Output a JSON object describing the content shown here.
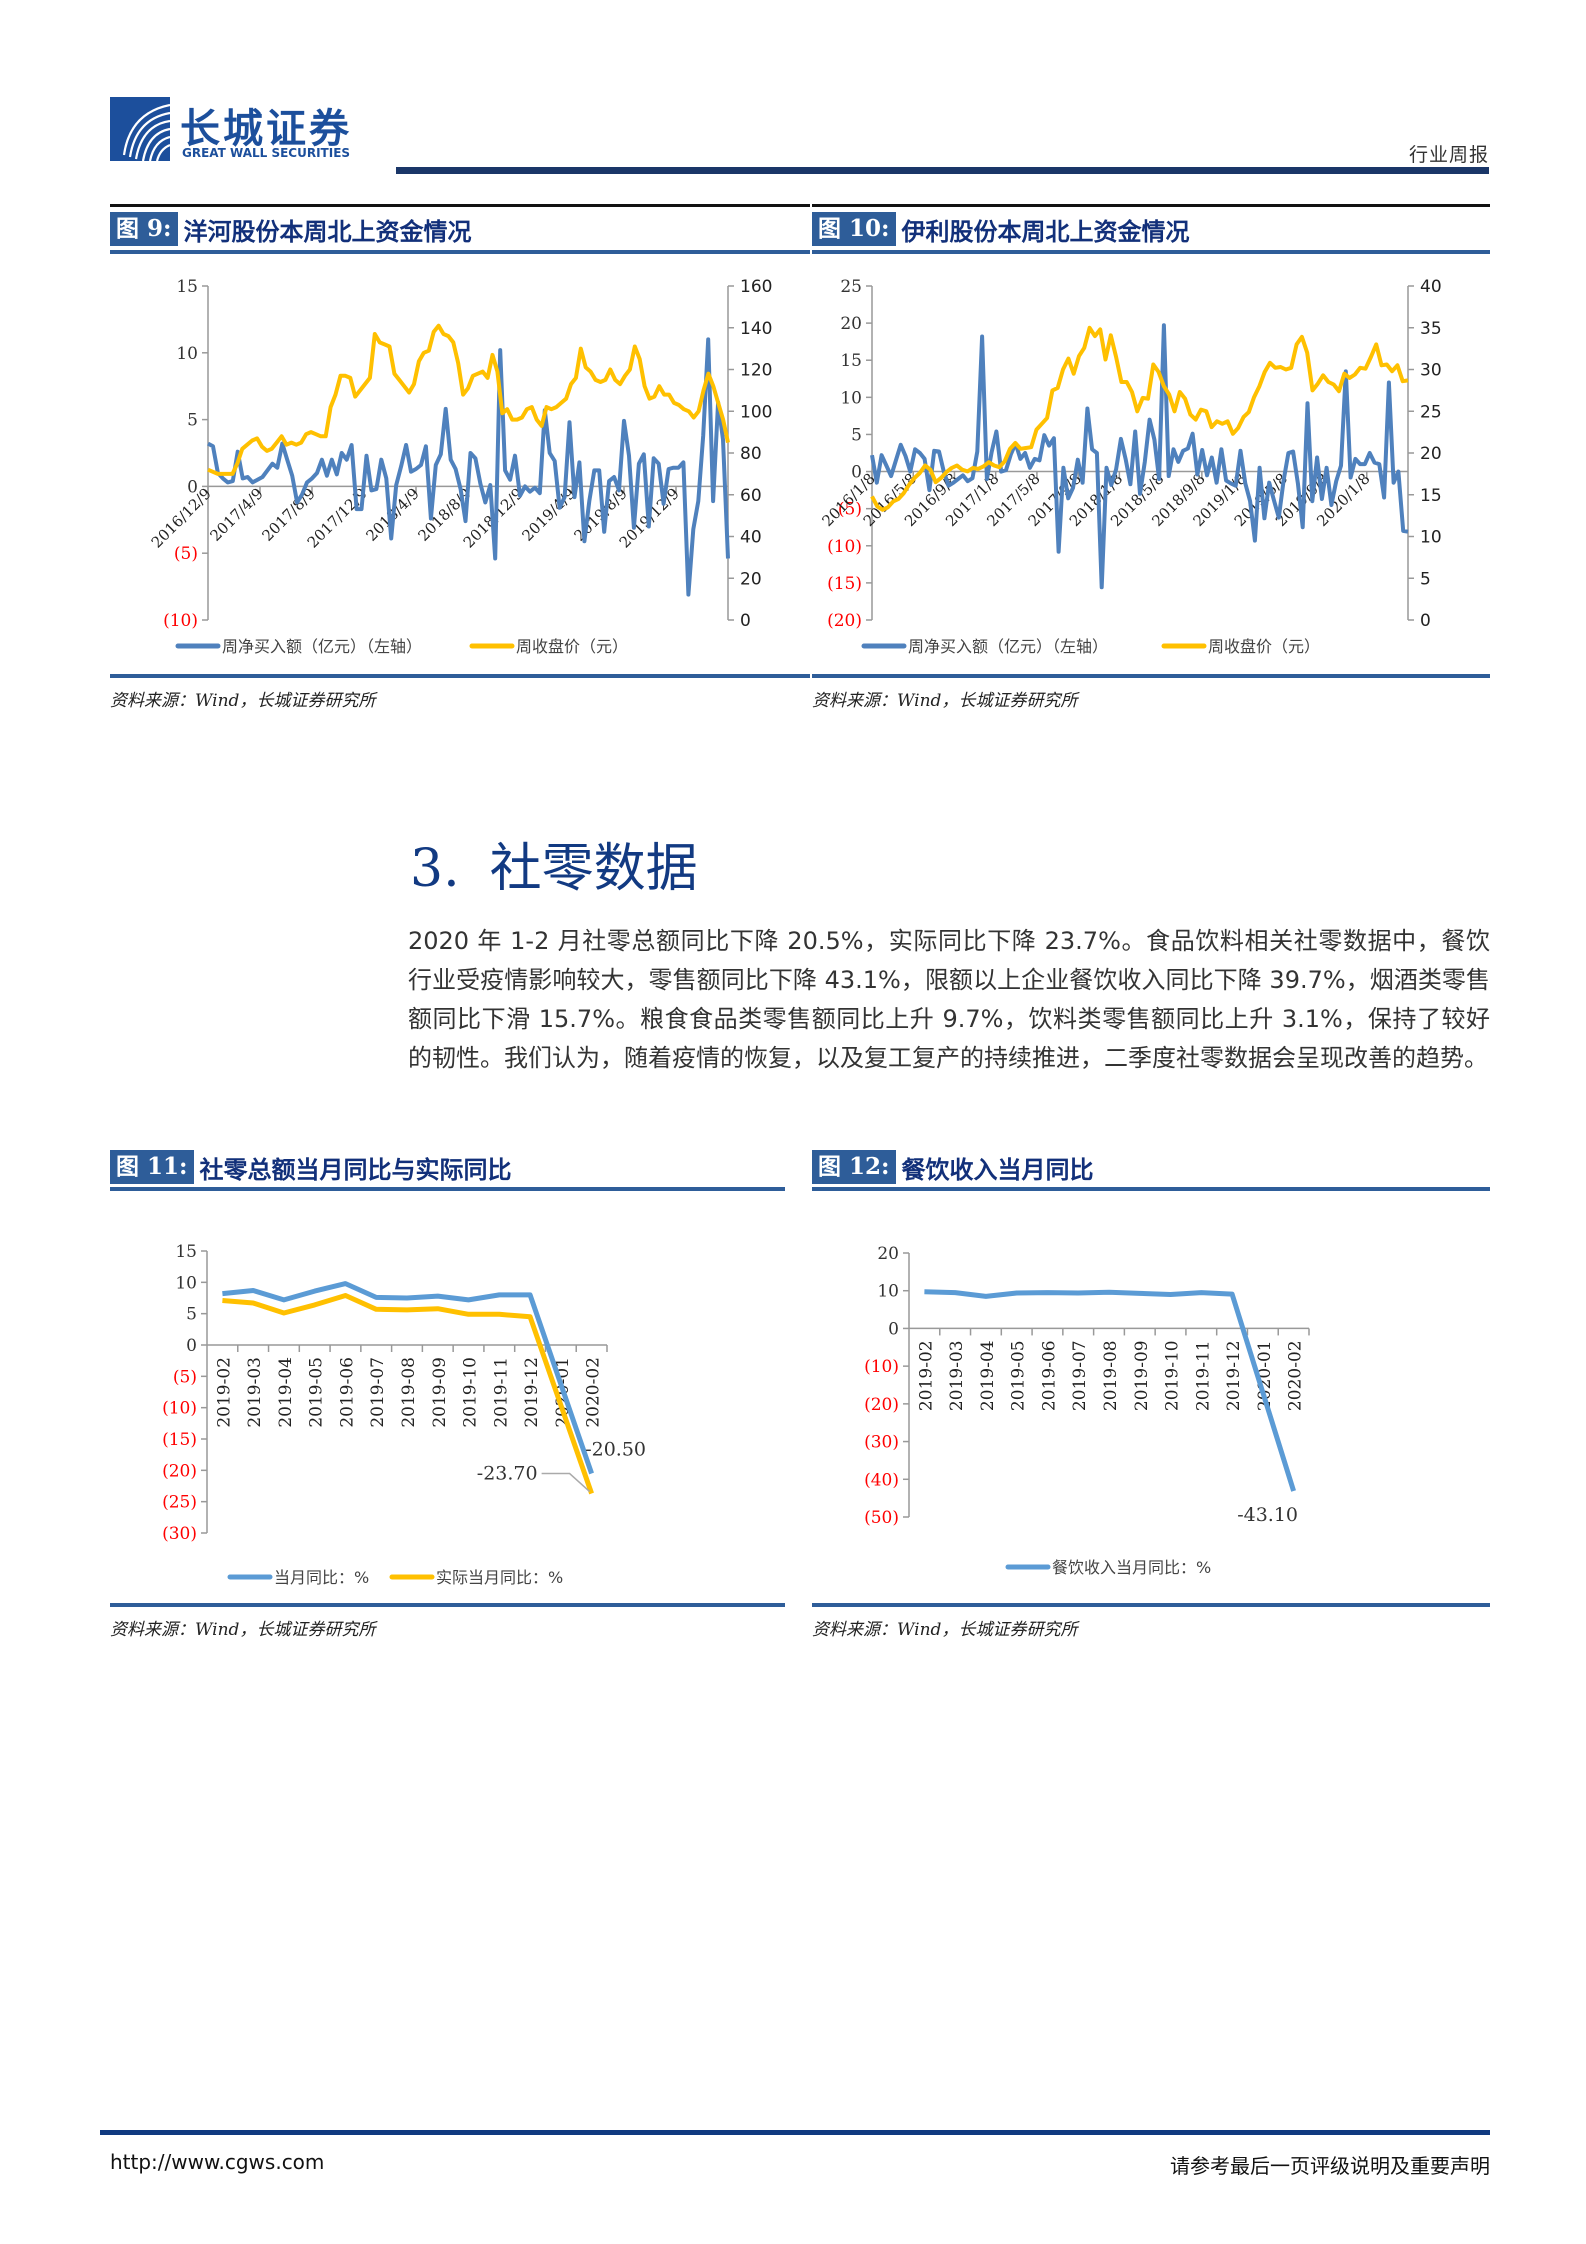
{
  "header": {
    "logo_cn": "长城证券",
    "logo_en": "GREAT WALL SECURITIES",
    "report_type": "行业周报"
  },
  "figures": {
    "fig9": {
      "label": "图 9:",
      "title": "洋河股份本周北上资金情况",
      "source": "资料来源：Wind，长城证券研究所"
    },
    "fig10": {
      "label": "图 10:",
      "title": "伊利股份本周北上资金情况",
      "source": "资料来源：Wind，长城证券研究所"
    },
    "fig11": {
      "label": "图 11:",
      "title": "社零总额当月同比与实际同比",
      "source": "资料来源：Wind，长城证券研究所"
    },
    "fig12": {
      "label": "图 12:",
      "title": "餐饮收入当月同比",
      "source": "资料来源：Wind，长城证券研究所"
    }
  },
  "section": {
    "number": "3.",
    "title": "社零数据",
    "paragraph": "2020 年 1-2 月社零总额同比下降 20.5%，实际同比下降 23.7%。食品饮料相关社零数据中，餐饮行业受疫情影响较大，零售额同比下降 43.1%，限额以上企业餐饮收入同比下降 39.7%，烟酒类零售额同比下滑 15.7%。粮食食品类零售额同比上升 9.7%，饮料类零售额同比上升 3.1%，保持了较好的韧性。我们认为，随着疫情的恢复，以及复工复产的持续推进，二季度社零数据会呈现改善的趋势。"
  },
  "footer": {
    "url": "http://www.cgws.com",
    "note": "请参考最后一页评级说明及重要声明"
  },
  "colors": {
    "blue_series": "#4f81bd",
    "gold_series": "#ffc000",
    "light_blue_series": "#5b9bd5",
    "brand_navy": "#1a3668",
    "fig_label_bg": "#2e5d99",
    "negative_tick": "#ff0000"
  },
  "chart_data": [
    {
      "id": "fig9",
      "type": "line",
      "title": "洋河股份本周北上资金情况",
      "x_ticks": [
        "2016/12/9",
        "2017/4/9",
        "2017/8/9",
        "2017/12/9",
        "2018/4/9",
        "2018/8/9",
        "2018/12/9",
        "2019/4/9",
        "2019/8/9",
        "2019/12/9"
      ],
      "left_axis": {
        "ticks": [
          "15",
          "10",
          "5",
          "0",
          "(5)",
          "(10)"
        ],
        "ylim": [
          -10,
          15
        ]
      },
      "right_axis": {
        "ticks": [
          "160",
          "140",
          "120",
          "100",
          "80",
          "60",
          "40",
          "20",
          "0"
        ],
        "ylim": [
          0,
          160
        ]
      },
      "series": [
        {
          "name": "周净买入额（亿元）（左轴）",
          "axis": "left",
          "color": "#4f81bd",
          "values": [
            3.2,
            3.0,
            1.0,
            0.6,
            0.3,
            0.4,
            2.6,
            0.6,
            0.7,
            0.3,
            0.5,
            0.7,
            1.2,
            1.7,
            1.4,
            3.2,
            2.0,
            0.8,
            -1.2,
            -0.6,
            0.3,
            0.6,
            1.0,
            2.0,
            0.8,
            2.0,
            0.9,
            2.5,
            2.0,
            3.1,
            -1.7,
            -1.7,
            2.3,
            -0.3,
            -0.2,
            2.0,
            0.6,
            -3.9,
            0.1,
            1.5,
            3.1,
            1.1,
            1.3,
            1.6,
            3.0,
            -2.4,
            1.6,
            2.4,
            5.8,
            2.0,
            1.3,
            -0.2,
            -2.6,
            2.5,
            2.1,
            0.2,
            -1.2,
            0.1,
            -5.4,
            10.2,
            1.2,
            0.5,
            2.3,
            -0.7,
            0.0,
            -0.4,
            -0.1,
            -0.5,
            5.7,
            2.5,
            1.9,
            -1.6,
            -0.8,
            4.8,
            -0.8,
            1.8,
            -4.1,
            -1.1,
            1.2,
            1.2,
            -3.4,
            0.4,
            0.7,
            -0.3,
            4.9,
            2.3,
            -3.1,
            1.7,
            2.4,
            -3.0,
            2.1,
            1.7,
            -1.3,
            1.3,
            1.4,
            1.4,
            1.8,
            -8.1,
            -3.2,
            -1.1,
            3.8,
            11.0,
            -1.1,
            6.3,
            3.5,
            -5.4
          ]
        },
        {
          "name": "周收盘价（元）",
          "axis": "right",
          "color": "#ffc000",
          "values": [
            72,
            71,
            70,
            70,
            70,
            70,
            75,
            82,
            84,
            86,
            87,
            83,
            81,
            82,
            85,
            88,
            84,
            85,
            84,
            85,
            89,
            90,
            89,
            88,
            88,
            102,
            108,
            117,
            117,
            116,
            107,
            110,
            113,
            116,
            137,
            133,
            132,
            131,
            118,
            115,
            112,
            109,
            113,
            124,
            128,
            129,
            138,
            141,
            137,
            136,
            133,
            123,
            108,
            111,
            117,
            118,
            119,
            116,
            127,
            119,
            99,
            101,
            96,
            96,
            97,
            101,
            102,
            96,
            93,
            102,
            101,
            102,
            104,
            106,
            113,
            116,
            130,
            121,
            119,
            115,
            114,
            115,
            120,
            115,
            113,
            117,
            120,
            131,
            125,
            112,
            106,
            107,
            112,
            108,
            108,
            104,
            103,
            101,
            100,
            97,
            100,
            110,
            118,
            112,
            104,
            96,
            85
          ]
        }
      ],
      "legend": [
        "周净买入额（亿元）（左轴）",
        "周收盘价（元）"
      ]
    },
    {
      "id": "fig10",
      "type": "line",
      "title": "伊利股份本周北上资金情况",
      "x_ticks": [
        "2016/1/8",
        "2016/5/8",
        "2016/9/8",
        "2017/1/8",
        "2017/5/8",
        "2017/9/8",
        "2018/1/8",
        "2018/5/8",
        "2018/9/8",
        "2019/1/8",
        "2019/5/8",
        "2019/9/8",
        "2020/1/8"
      ],
      "left_axis": {
        "ticks": [
          "25",
          "20",
          "15",
          "10",
          "5",
          "0",
          "(5)",
          "(10)",
          "(15)",
          "(20)"
        ],
        "ylim": [
          -20,
          25
        ]
      },
      "right_axis": {
        "ticks": [
          "40",
          "35",
          "30",
          "25",
          "20",
          "15",
          "10",
          "5",
          "0"
        ],
        "ylim": [
          0,
          40
        ]
      },
      "series": [
        {
          "name": "周净买入额（亿元）（左轴）",
          "axis": "left",
          "color": "#4f81bd",
          "values": [
            2.2,
            -1.5,
            2.2,
            0.8,
            -0.6,
            1.5,
            3.6,
            2.1,
            0.0,
            3.0,
            2.5,
            1.7,
            -2.5,
            2.8,
            2.7,
            0.0,
            -1.9,
            -1.5,
            -1.0,
            -0.5,
            -1.3,
            -0.9,
            2.7,
            18.2,
            -1.0,
            2.6,
            5.4,
            0.0,
            0.2,
            2.3,
            3.8,
            1.7,
            2.5,
            0.5,
            1.7,
            1.5,
            4.9,
            3.5,
            4.5,
            -10.8,
            0.5,
            -3.6,
            -2.2,
            1.6,
            -1.5,
            8.5,
            3.0,
            2.5,
            -15.6,
            0.5,
            -1.8,
            0.3,
            4.4,
            1.7,
            -1.7,
            5.4,
            -3.0,
            1.3,
            7.0,
            4.3,
            -1.0,
            19.7,
            -0.6,
            3.0,
            1.3,
            2.8,
            3.1,
            5.1,
            -0.4,
            2.9,
            -0.5,
            1.9,
            -1.5,
            3.0,
            -1.2,
            -1.6,
            -1.9,
            2.8,
            -1.6,
            -4.0,
            -9.3,
            0.5,
            -6.3,
            -1.5,
            -3.9,
            -6.2,
            -1.2,
            2.5,
            2.7,
            -1.6,
            -7.5,
            9.2,
            -4.0,
            1.9,
            -3.7,
            0.5,
            -4.5,
            -1.3,
            0.8,
            13.5,
            -0.8,
            1.7,
            1.0,
            1.0,
            2.5,
            1.2,
            1.0,
            -3.5,
            12.0,
            -1.5,
            0.0,
            -8.0,
            -8.1
          ]
        },
        {
          "name": "周收盘价（元）",
          "axis": "right",
          "color": "#ffc000",
          "values": [
            14.8,
            13.6,
            13.2,
            13.5,
            14.2,
            14.5,
            15.2,
            16.2,
            17.0,
            17.6,
            18.5,
            18.0,
            16.5,
            17.0,
            17.7,
            18.2,
            18.5,
            18.0,
            17.8,
            18.2,
            18.1,
            18.4,
            18.9,
            18.5,
            18.3,
            19.0,
            20.5,
            21.2,
            20.5,
            20.6,
            20.7,
            22.8,
            23.5,
            24.2,
            27.5,
            27.8,
            30.0,
            31.3,
            29.5,
            31.6,
            32.6,
            35.0,
            34.0,
            34.8,
            31.2,
            34.1,
            31.5,
            28.5,
            28.5,
            27.3,
            25.0,
            26.6,
            26.5,
            30.6,
            29.7,
            28.0,
            27.0,
            25.0,
            27.3,
            26.5,
            24.6,
            24.0,
            25.2,
            25.0,
            23.1,
            23.8,
            23.5,
            23.8,
            22.3,
            23.0,
            24.3,
            24.9,
            26.7,
            28.0,
            29.7,
            30.8,
            30.2,
            30.3,
            30.0,
            30.2,
            33.0,
            33.9,
            32.0,
            27.5,
            28.3,
            29.3,
            28.5,
            28.2,
            27.4,
            29.5,
            29.0,
            29.4,
            30.2,
            30.1,
            31.5,
            33.0,
            30.5,
            30.6,
            29.8,
            30.5,
            28.6,
            28.7
          ]
        }
      ],
      "legend": [
        "周净买入额（亿元）（左轴）",
        "周收盘价（元）"
      ]
    },
    {
      "id": "fig11",
      "type": "line",
      "title": "社零总额当月同比与实际同比",
      "categories": [
        "2019-02",
        "2019-03",
        "2019-04",
        "2019-05",
        "2019-06",
        "2019-07",
        "2019-08",
        "2019-09",
        "2019-10",
        "2019-11",
        "2019-12",
        "2020-01",
        "2020-02"
      ],
      "left_axis": {
        "ticks": [
          "15",
          "10",
          "5",
          "0",
          "(5)",
          "(10)",
          "(15)",
          "(20)",
          "(25)",
          "(30)"
        ],
        "ylim": [
          -30,
          15
        ]
      },
      "series": [
        {
          "name": "当月同比：%",
          "color": "#5b9bd5",
          "values": [
            8.2,
            8.7,
            7.2,
            8.6,
            9.8,
            7.6,
            7.5,
            7.8,
            7.2,
            8.0,
            8.0,
            null,
            -20.5
          ]
        },
        {
          "name": "实际当月同比：%",
          "color": "#ffc000",
          "values": [
            7.1,
            6.7,
            5.1,
            6.4,
            7.9,
            5.7,
            5.6,
            5.8,
            4.9,
            4.9,
            4.5,
            null,
            -23.7
          ]
        }
      ],
      "annotations": [
        "-20.50",
        "-23.70"
      ],
      "legend": [
        "当月同比：%",
        "实际当月同比：%"
      ]
    },
    {
      "id": "fig12",
      "type": "line",
      "title": "餐饮收入当月同比",
      "categories": [
        "2019-02",
        "2019-03",
        "2019-04",
        "2019-05",
        "2019-06",
        "2019-07",
        "2019-08",
        "2019-09",
        "2019-10",
        "2019-11",
        "2019-12",
        "2020-01",
        "2020-02"
      ],
      "left_axis": {
        "ticks": [
          "20",
          "10",
          "0",
          "(10)",
          "(20)",
          "(30)",
          "(40)",
          "(50)"
        ],
        "ylim": [
          -50,
          20
        ]
      },
      "series": [
        {
          "name": "餐饮收入当月同比：%",
          "color": "#5b9bd5",
          "values": [
            9.7,
            9.5,
            8.5,
            9.4,
            9.5,
            9.4,
            9.6,
            9.3,
            9.0,
            9.5,
            9.1,
            null,
            -43.1
          ]
        }
      ],
      "annotations": [
        "-43.10"
      ],
      "legend": [
        "餐饮收入当月同比：%"
      ]
    }
  ]
}
